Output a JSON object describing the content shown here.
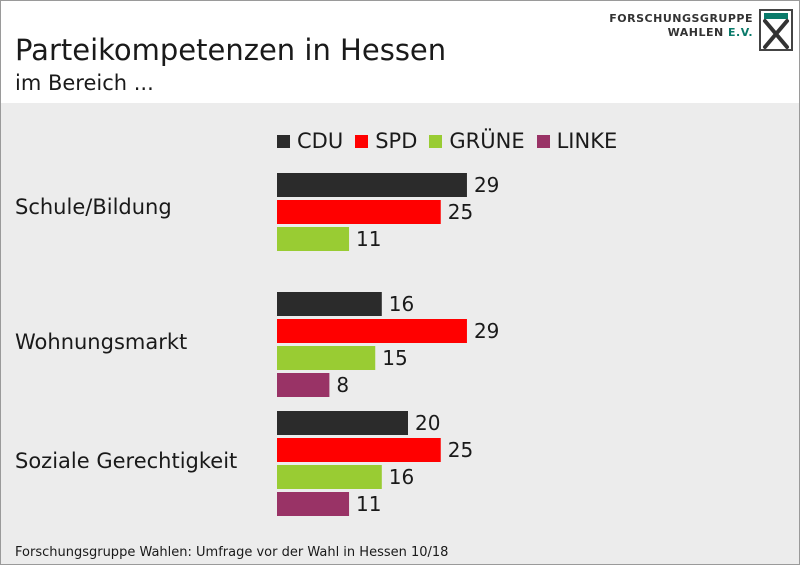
{
  "title": "Parteikompetenzen in Hessen",
  "subtitle": "im Bereich ...",
  "logo": {
    "line1": "FORSCHUNGSGRUPPE",
    "line2_main": "WAHLEN",
    "line2_suffix": "E.V."
  },
  "footer": "Forschungsgruppe Wahlen: Umfrage vor der Wahl in Hessen 10/18",
  "colors": {
    "CDU": "#2b2b2b",
    "SPD": "#ff0000",
    "GRÜNE": "#99cc33",
    "LINKE": "#993366",
    "background": "#ececec"
  },
  "chart_data": {
    "type": "bar",
    "orientation": "horizontal",
    "categories": [
      "Schule/Bildung",
      "Wohnungsmarkt",
      "Soziale Gerechtigkeit"
    ],
    "series": [
      {
        "name": "CDU",
        "values": [
          29,
          16,
          20
        ]
      },
      {
        "name": "SPD",
        "values": [
          25,
          29,
          25
        ]
      },
      {
        "name": "GRÜNE",
        "values": [
          11,
          15,
          16
        ]
      },
      {
        "name": "LINKE",
        "values": [
          null,
          8,
          11
        ]
      }
    ],
    "title": "Parteikompetenzen in Hessen",
    "subtitle": "im Bereich ...",
    "xlabel": "",
    "ylabel": "",
    "xlim": [
      0,
      29
    ],
    "grid": false,
    "legend": "top",
    "data_labels": true
  }
}
